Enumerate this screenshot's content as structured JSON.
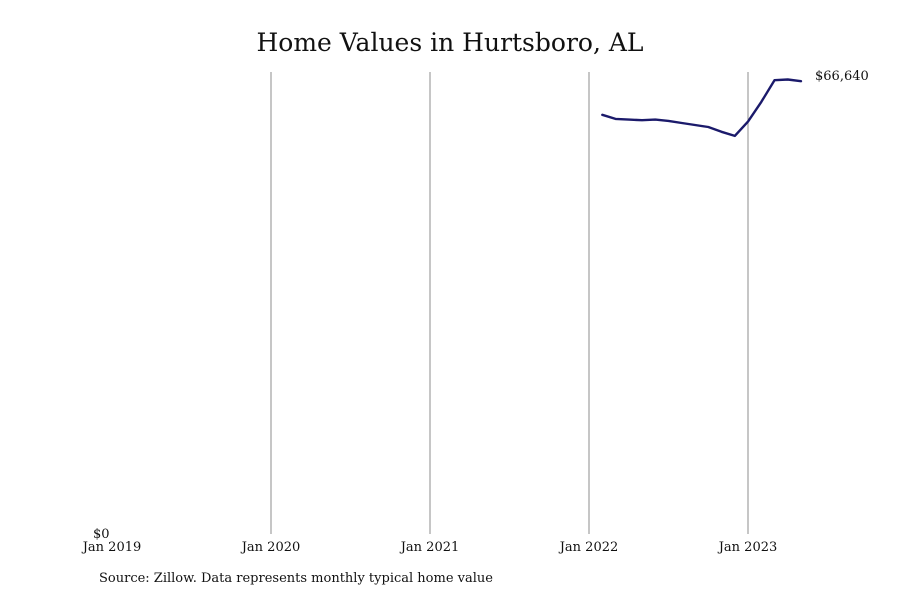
{
  "chart_data": {
    "type": "line",
    "title": "Home Values in Hurtsboro, AL",
    "source": "Source: Zillow. Data represents monthly typical home value",
    "xlabel": "",
    "ylabel": "",
    "x_ticks": [
      "Jan 2019",
      "Jan 2020",
      "Jan 2021",
      "Jan 2022",
      "Jan 2023"
    ],
    "y_min_label": "$0",
    "end_label": "$66,640",
    "xlim": [
      "2019-01",
      "2023-08"
    ],
    "ylim": [
      0,
      68000
    ],
    "grid": "vertical",
    "line_color": "#1b1a6b",
    "series": [
      {
        "x": [
          "2022-02",
          "2022-03",
          "2022-04",
          "2022-05",
          "2022-06",
          "2022-07",
          "2022-08",
          "2022-09",
          "2022-10",
          "2022-11",
          "2022-12",
          "2023-01",
          "2023-02",
          "2023-03",
          "2023-04",
          "2023-05"
        ],
        "values": [
          61700,
          61100,
          61000,
          60900,
          61000,
          60800,
          60500,
          60200,
          59900,
          59200,
          58600,
          60700,
          63600,
          66800,
          66900,
          66640
        ]
      }
    ]
  }
}
